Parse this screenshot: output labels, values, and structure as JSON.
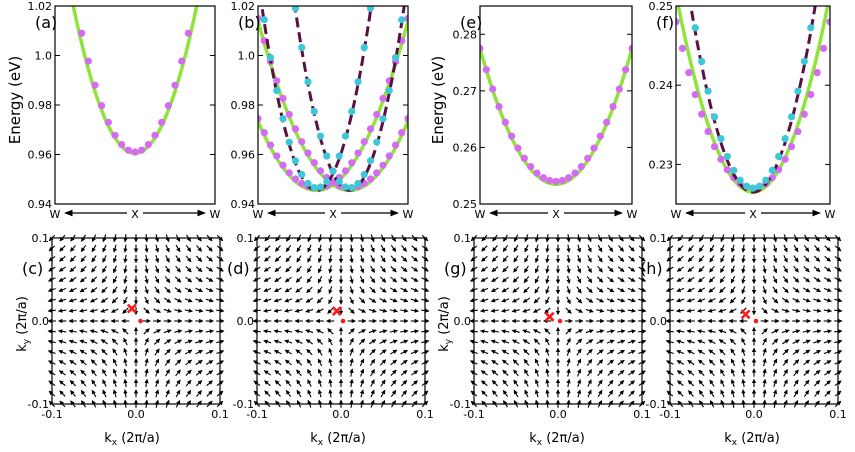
{
  "figure": {
    "energy_ylabel": "Energy (eV)",
    "ky_label": "k",
    "ky_sub": "y",
    "ky_unit": " (2π/a)",
    "kx_label": "k",
    "kx_sub": "x",
    "kx_unit": " (2π/a)"
  },
  "colors": {
    "violet": "#d56bf0",
    "green": "#8fe33a",
    "cyan": "#3cc8d8",
    "maroon": "#5a1040",
    "arrow": "#000000",
    "marker": "#ff1a1a"
  },
  "chart_data": [
    {
      "id": "a",
      "type": "line",
      "label": "(a)",
      "xticks": [
        "W",
        "X",
        "W"
      ],
      "ylim": [
        0.94,
        1.02
      ],
      "yticks": [
        "0.94",
        "0.96",
        "0.98",
        "1.0",
        "1.02"
      ],
      "ytick_values": [
        0.94,
        0.96,
        0.98,
        1.0,
        1.02
      ],
      "series": [
        {
          "name": "band-1",
          "style": "line",
          "color": "green",
          "min": 0.9605,
          "curv": 0.1
        },
        {
          "name": "band-1-fit",
          "style": "dots",
          "color": "violet",
          "min": 0.961,
          "curv": 0.108
        }
      ]
    },
    {
      "id": "b",
      "type": "line",
      "label": "(b)",
      "xticks": [
        "W",
        "X",
        "W"
      ],
      "ylim": [
        0.94,
        1.02
      ],
      "yticks": [
        "0.94",
        "0.96",
        "0.98",
        "1.0",
        "1.02"
      ],
      "ytick_values": [
        0.94,
        0.96,
        0.98,
        1.0,
        1.02
      ],
      "series": [
        {
          "name": "band-outer-left",
          "style": "line",
          "color": "green",
          "min": 0.9455,
          "curv": 0.046,
          "shift": -0.22
        },
        {
          "name": "band-outer-right",
          "style": "line",
          "color": "green",
          "min": 0.9455,
          "curv": 0.046,
          "shift": 0.22
        },
        {
          "name": "band-outer-left-dots",
          "style": "dots",
          "color": "violet",
          "min": 0.9465,
          "curv": 0.046,
          "shift": -0.22
        },
        {
          "name": "band-outer-right-dots",
          "style": "dots",
          "color": "violet",
          "min": 0.9465,
          "curv": 0.046,
          "shift": 0.22
        },
        {
          "name": "band-inner-left",
          "style": "dash",
          "color": "maroon",
          "min": 0.9455,
          "curv": 0.14,
          "shift": -0.22
        },
        {
          "name": "band-inner-right",
          "style": "dash",
          "color": "maroon",
          "min": 0.9455,
          "curv": 0.14,
          "shift": 0.22
        },
        {
          "name": "band-inner-left-dots",
          "style": "dots",
          "color": "cyan",
          "min": 0.9465,
          "curv": 0.14,
          "shift": -0.22
        },
        {
          "name": "band-inner-right-dots",
          "style": "dots",
          "color": "cyan",
          "min": 0.9465,
          "curv": 0.14,
          "shift": 0.22
        }
      ]
    },
    {
      "id": "e",
      "type": "line",
      "label": "(e)",
      "xticks": [
        "W",
        "X",
        "W"
      ],
      "ylim": [
        0.25,
        0.285
      ],
      "yticks": [
        "0.25",
        "0.26",
        "0.27",
        "0.28"
      ],
      "ytick_values": [
        0.25,
        0.26,
        0.27,
        0.28
      ],
      "series": [
        {
          "name": "band-1",
          "style": "line",
          "color": "green",
          "min": 0.2535,
          "curv": 0.024
        },
        {
          "name": "band-1-fit",
          "style": "dots",
          "color": "violet",
          "min": 0.254,
          "curv": 0.0235
        }
      ]
    },
    {
      "id": "f",
      "type": "line",
      "label": "(f)",
      "xticks": [
        "W",
        "X",
        "W"
      ],
      "ylim": [
        0.225,
        0.25
      ],
      "yticks": [
        "0.23",
        "0.24",
        "0.25"
      ],
      "ytick_values": [
        0.23,
        0.24,
        0.25
      ],
      "series": [
        {
          "name": "band-outer",
          "style": "line",
          "color": "green",
          "min": 0.2265,
          "curv": 0.025
        },
        {
          "name": "band-outer-dots",
          "style": "dots",
          "color": "violet",
          "min": 0.227,
          "curv": 0.021
        },
        {
          "name": "band-inner",
          "style": "dash",
          "color": "maroon",
          "min": 0.2265,
          "curv": 0.036
        },
        {
          "name": "band-inner-dots",
          "style": "dots",
          "color": "cyan",
          "min": 0.227,
          "curv": 0.036
        }
      ]
    },
    {
      "id": "c",
      "type": "quiver",
      "label": "(c)",
      "xlim": [
        -0.1,
        0.1
      ],
      "ylim": [
        -0.1,
        0.1
      ],
      "xticks": [
        "-0.1",
        "0.0",
        "0.1"
      ],
      "xtick_values": [
        -0.1,
        0.0,
        0.1
      ],
      "yticks": [
        "-0.1",
        "0.0",
        "0.1"
      ],
      "ytick_values": [
        -0.1,
        0.0,
        0.1
      ],
      "field": "radial-hyperbolic",
      "cross": [
        -0.005,
        0.015
      ],
      "dot": [
        0.003,
        0.0
      ]
    },
    {
      "id": "d",
      "type": "quiver",
      "label": "(d)",
      "xlim": [
        -0.1,
        0.1
      ],
      "ylim": [
        -0.1,
        0.1
      ],
      "xticks": [
        "-0.1",
        "0.0",
        "0.1"
      ],
      "xtick_values": [
        -0.1,
        0.0,
        0.1
      ],
      "yticks": [
        "-0.1",
        "0.0",
        "0.1"
      ],
      "ytick_values": [
        -0.1,
        0.0,
        0.1
      ],
      "field": "radial-hyperbolic",
      "cross": [
        -0.005,
        0.012
      ],
      "dot": [
        0.0,
        0.0
      ]
    },
    {
      "id": "g",
      "type": "quiver",
      "label": "(g)",
      "xlim": [
        -0.1,
        0.1
      ],
      "ylim": [
        -0.1,
        0.1
      ],
      "xticks": [
        "-0.1",
        "0.0",
        "0.1"
      ],
      "xtick_values": [
        -0.1,
        0.0,
        0.1
      ],
      "yticks": [
        "-0.1",
        "0.0",
        "0.1"
      ],
      "ytick_values": [
        -0.1,
        0.0,
        0.1
      ],
      "field": "radial-hyperbolic",
      "cross": [
        -0.01,
        0.005
      ],
      "dot": [
        0.0,
        0.0
      ]
    },
    {
      "id": "h",
      "type": "quiver",
      "label": "(h)",
      "xlim": [
        -0.1,
        0.1
      ],
      "ylim": [
        -0.1,
        0.1
      ],
      "xticks": [
        "-0.1",
        "0.0",
        "0.1"
      ],
      "xtick_values": [
        -0.1,
        0.0,
        0.1
      ],
      "yticks": [
        "-0.1",
        "0.0",
        "0.1"
      ],
      "ytick_values": [
        -0.1,
        0.0,
        0.1
      ],
      "field": "radial-hyperbolic",
      "cross": [
        -0.01,
        0.008
      ],
      "dot": [
        0.0,
        0.0
      ]
    }
  ]
}
